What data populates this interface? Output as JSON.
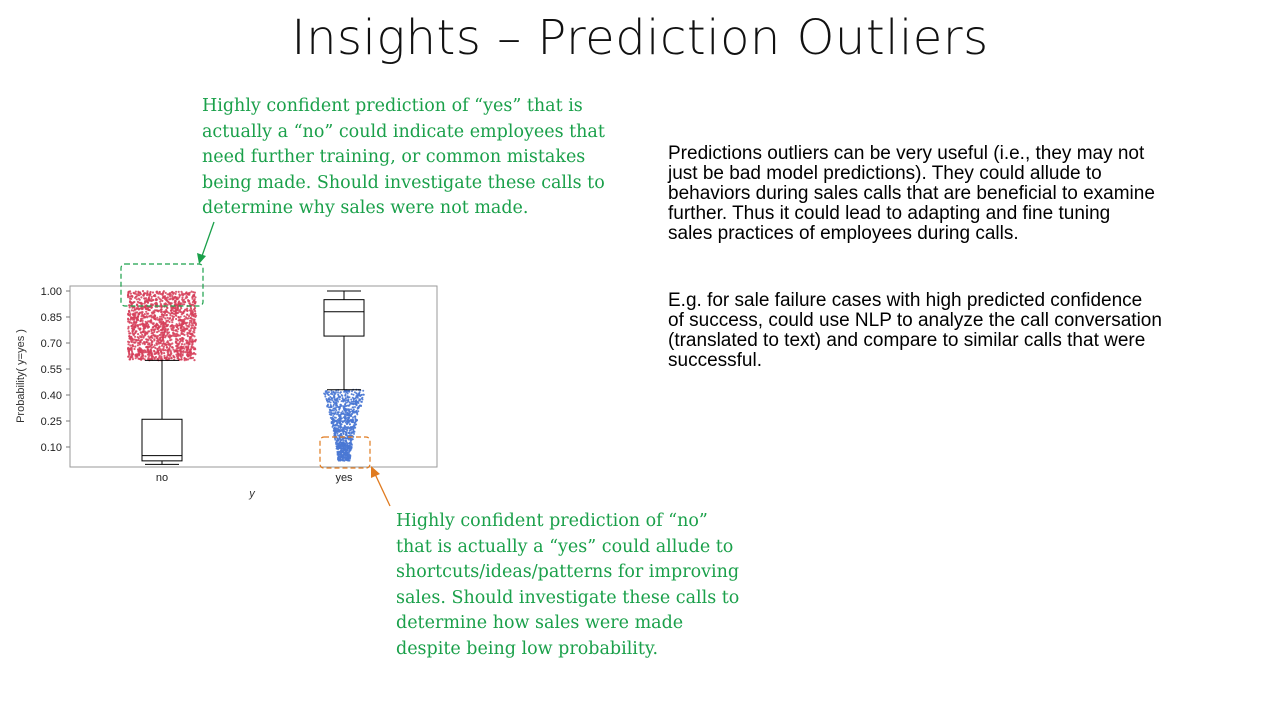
{
  "slide": {
    "title": "Insights – Prediction Outliers",
    "note_top_lines": [
      "Highly confident prediction of “yes” that is",
      "actually a “no” could indicate employees that",
      "need further training, or common mistakes",
      "being made.  Should investigate these calls to",
      "determine why sales were not made."
    ],
    "note_bottom_lines": [
      "Highly confident prediction of “no”",
      "that is actually a “yes” could allude to",
      "shortcuts/ideas/patterns for improving",
      "sales.  Should investigate these calls to",
      "determine how sales were made",
      "despite being low probability."
    ],
    "para1_lines": [
      "Predictions outliers can be very useful (i.e., they may not",
      "just be bad model predictions).  They could allude to",
      "behaviors during sales calls that are beneficial to examine",
      "further.  Thus it could lead to adapting and fine tuning",
      "sales practices of employees during calls."
    ],
    "para2_lines": [
      "E.g. for sale failure cases with high predicted confidence",
      "of success, could use NLP to analyze the call conversation",
      "(translated to text) and compare to similar calls that were",
      "successful."
    ]
  },
  "colors": {
    "note_green": "#1aa04a",
    "callout_orange": "#e07b20",
    "no_points": "#d6405a",
    "yes_points": "#4a78d4",
    "box_stroke": "#000000"
  },
  "chart_data": {
    "type": "box",
    "xlabel": "y",
    "ylabel": "Probability( y=yes )",
    "categories": [
      "no",
      "yes"
    ],
    "yticks": [
      "0.10",
      "0.25",
      "0.40",
      "0.55",
      "0.70",
      "0.85",
      "1.00"
    ],
    "ylim": [
      0.0,
      1.05
    ],
    "boxes": [
      {
        "name": "no",
        "whisker_low": 0.0,
        "q1": 0.02,
        "median": 0.05,
        "q3": 0.26,
        "whisker_high": 0.6,
        "outliers_range": [
          0.6,
          1.0
        ],
        "outlier_color": "#d6405a"
      },
      {
        "name": "yes",
        "whisker_low": 0.43,
        "q1": 0.74,
        "median": 0.88,
        "q3": 0.95,
        "whisker_high": 1.0,
        "outliers_range": [
          0.02,
          0.43
        ],
        "outlier_color": "#4a78d4"
      }
    ],
    "grid": false
  }
}
